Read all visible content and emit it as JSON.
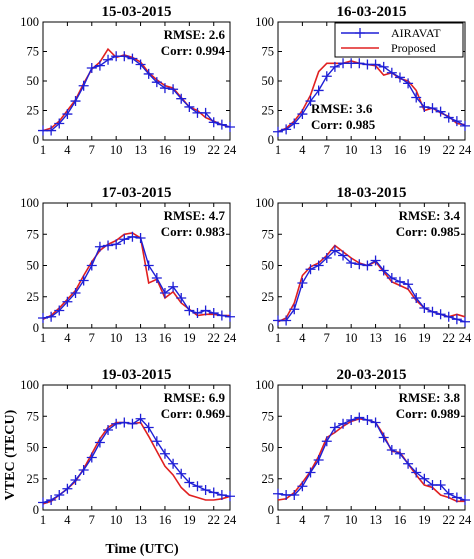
{
  "figure": {
    "ylabel": "VTEC (TECU)",
    "xlabel": "Time (UTC)"
  },
  "legend": {
    "entries": [
      {
        "name": "AIRAVAT",
        "color": "#1f1fd6",
        "marker": "plus"
      },
      {
        "name": "Proposed",
        "color": "#e02020",
        "marker": "none"
      }
    ],
    "placement": "top-right of panel 16-03-2015"
  },
  "colors": {
    "airavat": "#1f1fd6",
    "proposed": "#e02020"
  },
  "chart_data": [
    {
      "type": "line",
      "title": "15-03-2015",
      "annotation": [
        "RMSE: 2.6",
        "Corr: 0.994"
      ],
      "annotation_position": "top-right",
      "xlim": [
        1,
        24
      ],
      "ylim": [
        0,
        100
      ],
      "xticks": [
        1,
        4,
        7,
        10,
        13,
        16,
        19,
        22,
        24
      ],
      "yticks": [
        0,
        25,
        50,
        75,
        100
      ],
      "x": [
        1,
        2,
        3,
        4,
        5,
        6,
        7,
        8,
        9,
        10,
        11,
        12,
        13,
        14,
        15,
        16,
        17,
        18,
        19,
        20,
        21,
        22,
        23,
        24
      ],
      "series": [
        {
          "name": "AIRAVAT",
          "values": [
            8,
            8,
            14,
            22,
            33,
            46,
            61,
            63,
            68,
            71,
            71,
            69,
            64,
            56,
            49,
            44,
            43,
            35,
            28,
            23,
            23,
            15,
            13,
            11
          ]
        },
        {
          "name": "Proposed",
          "values": [
            8,
            10,
            16,
            25,
            34,
            48,
            60,
            66,
            77,
            70,
            72,
            70,
            66,
            57,
            51,
            46,
            44,
            36,
            28,
            25,
            19,
            16,
            13,
            11
          ]
        }
      ]
    },
    {
      "type": "line",
      "title": "16-03-2015",
      "annotation": [
        "RMSE: 3.6",
        "Corr: 0.985"
      ],
      "annotation_position": "bottom-left",
      "xlim": [
        1,
        24
      ],
      "ylim": [
        0,
        100
      ],
      "xticks": [
        1,
        4,
        7,
        10,
        13,
        16,
        19,
        22,
        24
      ],
      "yticks": [
        0,
        25,
        50,
        75,
        100
      ],
      "x": [
        1,
        2,
        3,
        4,
        5,
        6,
        7,
        8,
        9,
        10,
        11,
        12,
        13,
        14,
        15,
        16,
        17,
        18,
        19,
        20,
        21,
        22,
        23,
        24
      ],
      "series": [
        {
          "name": "AIRAVAT",
          "values": [
            7,
            9,
            14,
            22,
            33,
            42,
            54,
            62,
            65,
            65,
            65,
            64,
            64,
            62,
            57,
            53,
            48,
            36,
            28,
            27,
            24,
            19,
            16,
            12
          ]
        },
        {
          "name": "Proposed",
          "values": [
            7,
            10,
            16,
            25,
            38,
            58,
            65,
            65,
            65,
            67,
            65,
            64,
            63,
            55,
            57,
            52,
            50,
            42,
            25,
            27,
            23,
            20,
            14,
            13
          ]
        }
      ]
    },
    {
      "type": "line",
      "title": "17-03-2015",
      "annotation": [
        "RMSE: 4.7",
        "Corr: 0.983"
      ],
      "annotation_position": "top-right",
      "xlim": [
        1,
        24
      ],
      "ylim": [
        0,
        100
      ],
      "xticks": [
        1,
        4,
        7,
        10,
        13,
        16,
        19,
        22,
        24
      ],
      "yticks": [
        0,
        25,
        50,
        75,
        100
      ],
      "x": [
        1,
        2,
        3,
        4,
        5,
        6,
        7,
        8,
        9,
        10,
        11,
        12,
        13,
        14,
        15,
        16,
        17,
        18,
        19,
        20,
        21,
        22,
        23,
        24
      ],
      "series": [
        {
          "name": "AIRAVAT",
          "values": [
            8,
            9,
            14,
            21,
            28,
            38,
            50,
            65,
            66,
            67,
            71,
            73,
            72,
            50,
            40,
            28,
            33,
            24,
            14,
            12,
            14,
            12,
            10,
            9
          ]
        },
        {
          "name": "Proposed",
          "values": [
            7,
            10,
            16,
            23,
            30,
            42,
            53,
            62,
            67,
            70,
            75,
            76,
            72,
            36,
            39,
            24,
            29,
            20,
            15,
            10,
            11,
            11,
            10,
            10
          ]
        }
      ]
    },
    {
      "type": "line",
      "title": "18-03-2015",
      "annotation": [
        "RMSE: 3.4",
        "Corr: 0.985"
      ],
      "annotation_position": "top-right",
      "xlim": [
        1,
        24
      ],
      "ylim": [
        0,
        100
      ],
      "xticks": [
        1,
        4,
        7,
        10,
        13,
        16,
        19,
        22,
        24
      ],
      "yticks": [
        0,
        25,
        50,
        75,
        100
      ],
      "x": [
        1,
        2,
        3,
        4,
        5,
        6,
        7,
        8,
        9,
        10,
        11,
        12,
        13,
        14,
        15,
        16,
        17,
        18,
        19,
        20,
        21,
        22,
        23,
        24
      ],
      "series": [
        {
          "name": "AIRAVAT",
          "values": [
            6,
            6,
            15,
            36,
            47,
            50,
            56,
            62,
            58,
            52,
            51,
            50,
            54,
            46,
            40,
            37,
            35,
            24,
            16,
            13,
            11,
            9,
            7,
            5
          ]
        },
        {
          "name": "Proposed",
          "values": [
            5,
            8,
            20,
            42,
            49,
            52,
            58,
            66,
            61,
            56,
            52,
            50,
            53,
            45,
            37,
            34,
            31,
            22,
            16,
            13,
            11,
            9,
            11,
            9
          ]
        }
      ]
    },
    {
      "type": "line",
      "title": "19-03-2015",
      "annotation": [
        "RMSE: 6.9",
        "Corr: 0.969"
      ],
      "annotation_position": "top-right",
      "xlim": [
        1,
        24
      ],
      "ylim": [
        0,
        100
      ],
      "xticks": [
        1,
        4,
        7,
        10,
        13,
        16,
        19,
        22,
        24
      ],
      "yticks": [
        0,
        25,
        50,
        75,
        100
      ],
      "x": [
        1,
        2,
        3,
        4,
        5,
        6,
        7,
        8,
        9,
        10,
        11,
        12,
        13,
        14,
        15,
        16,
        17,
        18,
        19,
        20,
        21,
        22,
        23,
        24
      ],
      "series": [
        {
          "name": "AIRAVAT",
          "values": [
            6,
            8,
            12,
            17,
            24,
            32,
            42,
            54,
            64,
            69,
            70,
            69,
            73,
            66,
            55,
            45,
            37,
            29,
            22,
            19,
            16,
            14,
            12,
            11
          ]
        },
        {
          "name": "Proposed",
          "values": [
            5,
            7,
            12,
            17,
            23,
            33,
            45,
            57,
            66,
            70,
            70,
            69,
            70,
            59,
            47,
            35,
            28,
            18,
            12,
            10,
            8,
            8,
            9,
            11
          ]
        }
      ]
    },
    {
      "type": "line",
      "title": "20-03-2015",
      "annotation": [
        "RMSE: 3.8",
        "Corr: 0.989"
      ],
      "annotation_position": "top-right",
      "xlim": [
        1,
        24
      ],
      "ylim": [
        0,
        100
      ],
      "xticks": [
        1,
        4,
        7,
        10,
        13,
        16,
        19,
        22,
        24
      ],
      "yticks": [
        0,
        25,
        50,
        75,
        100
      ],
      "x": [
        1,
        2,
        3,
        4,
        5,
        6,
        7,
        8,
        9,
        10,
        11,
        12,
        13,
        14,
        15,
        16,
        17,
        18,
        19,
        20,
        21,
        22,
        23,
        24
      ],
      "series": [
        {
          "name": "AIRAVAT",
          "values": [
            13,
            12,
            12,
            19,
            30,
            40,
            55,
            66,
            69,
            72,
            74,
            72,
            70,
            58,
            48,
            45,
            37,
            30,
            25,
            20,
            20,
            13,
            10,
            8
          ]
        },
        {
          "name": "Proposed",
          "values": [
            8,
            9,
            14,
            22,
            31,
            43,
            58,
            62,
            67,
            71,
            73,
            72,
            70,
            60,
            47,
            46,
            37,
            28,
            20,
            18,
            12,
            10,
            7,
            7
          ]
        }
      ]
    }
  ]
}
